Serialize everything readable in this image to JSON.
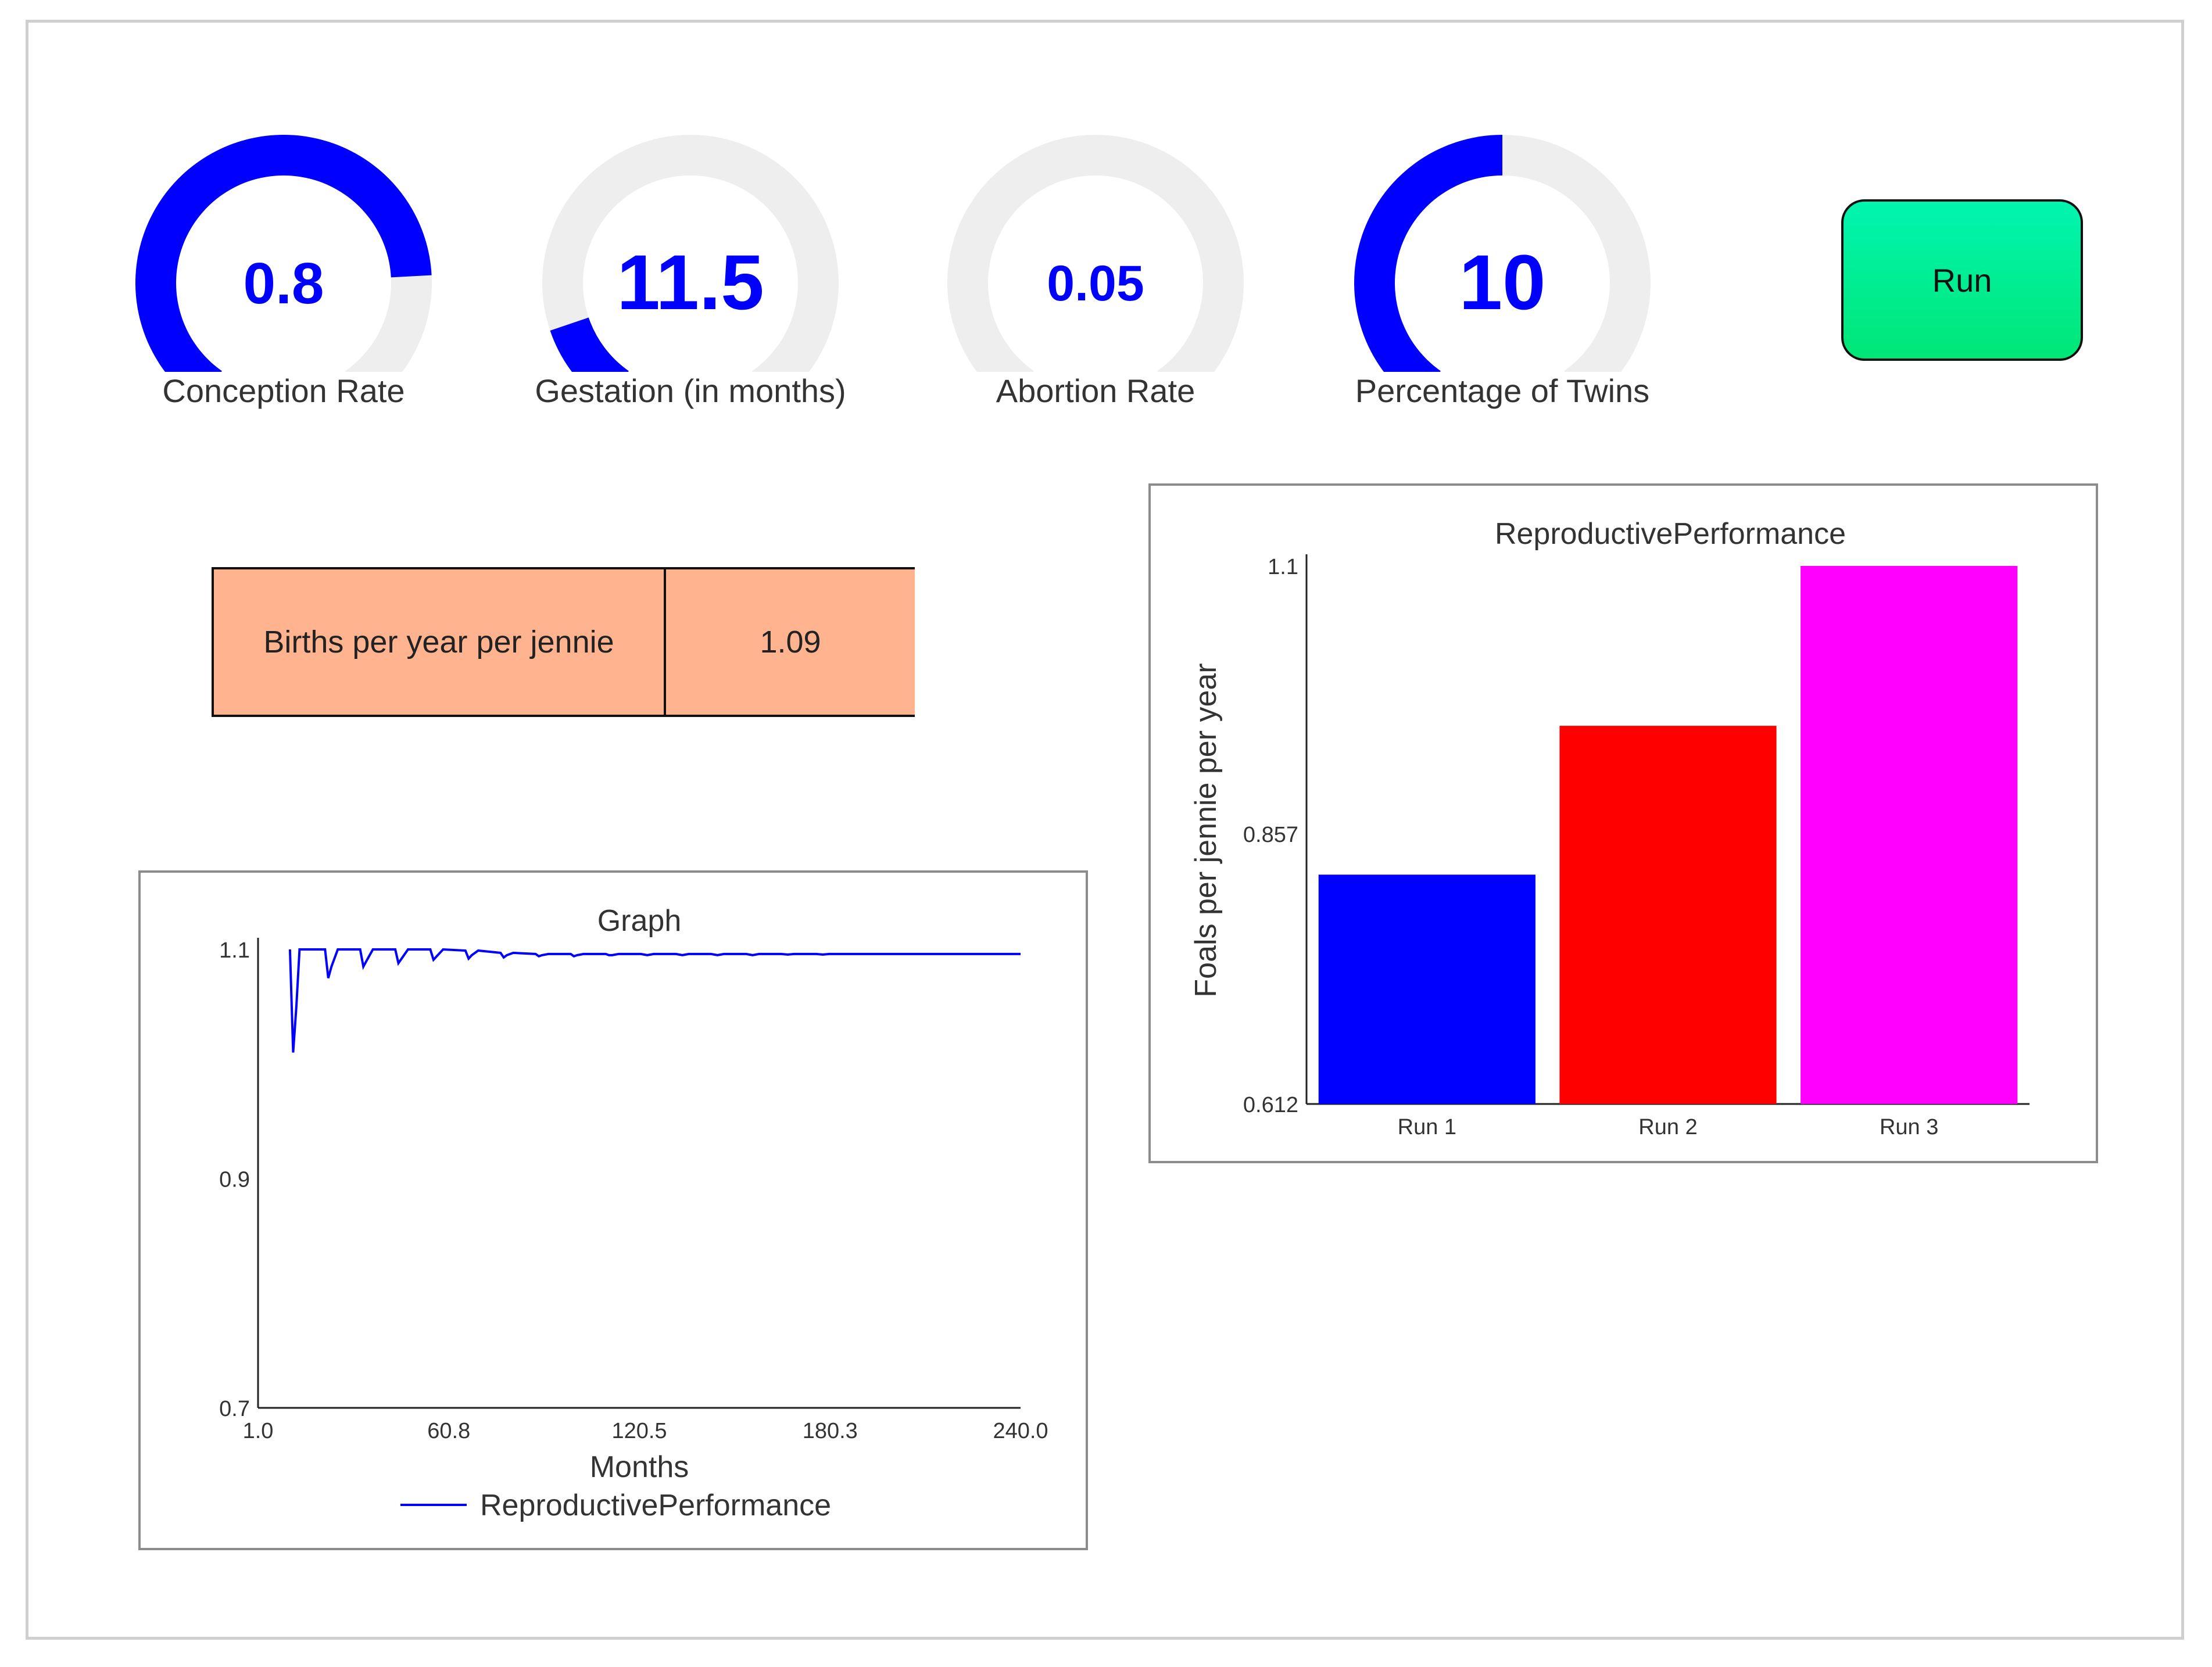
{
  "gauges": [
    {
      "value": "0.8",
      "label": "Conception Rate",
      "fraction": 0.8
    },
    {
      "value": "11.5",
      "label": "Gestation (in months)",
      "fraction": 0.125
    },
    {
      "value": "0.05",
      "label": "Abortion Rate",
      "fraction": 0
    },
    {
      "value": "10",
      "label": "Percentage of Twins",
      "fraction": 0.5
    }
  ],
  "run_button": {
    "label": "Run"
  },
  "stat_table": {
    "label": "Births per year per jennie",
    "value": "1.09"
  },
  "colors": {
    "gauge_fill": "#0000ff",
    "gauge_track": "#eeeeee",
    "gauge_text": "#0000ff",
    "line": "#0000ff",
    "table_bg": "#ffb48f",
    "run_button": "#00f0a0"
  },
  "chart_data": [
    {
      "type": "line",
      "title": "Graph",
      "xlabel": "Months",
      "ylabel": "",
      "xlim": [
        1.0,
        240.0
      ],
      "ylim": [
        0.7,
        1.1
      ],
      "xticks": [
        "1.0",
        "60.8",
        "120.5",
        "180.3",
        "240.0"
      ],
      "yticks": [
        "1.1",
        "0.9",
        "0.7"
      ],
      "legend": "bottom",
      "grid": false,
      "series": [
        {
          "name": "ReproductivePerformance",
          "color": "#0000ff",
          "x": [
            11,
            12,
            13,
            14,
            22,
            23,
            24,
            26,
            33,
            34,
            35,
            37,
            44,
            45,
            46,
            48,
            55,
            56,
            57,
            59,
            66,
            67,
            68,
            70,
            77,
            78,
            79,
            81,
            88,
            89,
            90,
            92,
            99,
            100,
            101,
            103,
            110,
            111,
            112,
            114,
            121,
            123,
            125,
            132,
            134,
            136,
            143,
            145,
            147,
            154,
            156,
            158,
            165,
            167,
            169,
            176,
            178,
            180,
            190,
            200,
            210,
            220,
            230,
            240
          ],
          "y": [
            1.1,
            1.01,
            1.05,
            1.1,
            1.1,
            1.075,
            1.085,
            1.1,
            1.1,
            1.085,
            1.09,
            1.1,
            1.1,
            1.088,
            1.092,
            1.1,
            1.1,
            1.091,
            1.094,
            1.1,
            1.099,
            1.092,
            1.095,
            1.099,
            1.097,
            1.093,
            1.095,
            1.097,
            1.096,
            1.094,
            1.095,
            1.096,
            1.096,
            1.094,
            1.095,
            1.096,
            1.096,
            1.095,
            1.095,
            1.096,
            1.096,
            1.095,
            1.096,
            1.096,
            1.095,
            1.096,
            1.096,
            1.095,
            1.096,
            1.096,
            1.095,
            1.096,
            1.096,
            1.0955,
            1.096,
            1.096,
            1.0955,
            1.096,
            1.096,
            1.096,
            1.096,
            1.096,
            1.096,
            1.096
          ]
        }
      ]
    },
    {
      "type": "bar",
      "title": "ReproductivePerformance",
      "xlabel": "",
      "ylabel": "Foals per jennie per year",
      "categories": [
        "Run 1",
        "Run 2",
        "Run 3"
      ],
      "values": [
        0.82,
        0.955,
        1.1
      ],
      "bar_colors": [
        "#0000ff",
        "#ff0000",
        "#ff00ff"
      ],
      "ylim": [
        0.612,
        1.1
      ],
      "yticks": [
        "1.1",
        "0.857",
        "0.612"
      ],
      "grid": false
    }
  ]
}
